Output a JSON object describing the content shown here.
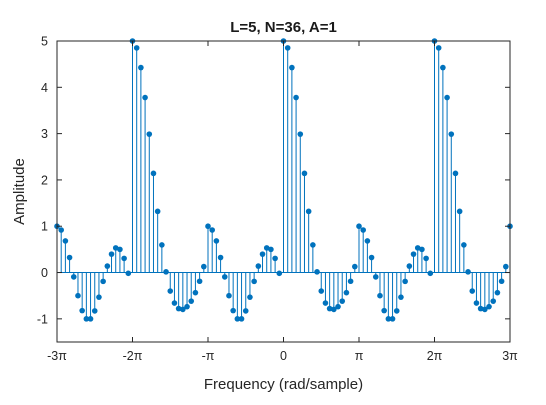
{
  "chart_data": {
    "type": "stem",
    "title": "L=5, N=36, A=1",
    "xlabel": "Frequency (rad/sample)",
    "ylabel": "Amplitude",
    "xlim_over_pi": [
      -3,
      3
    ],
    "ylim": [
      -1.5,
      5
    ],
    "x_ticks": [
      {
        "value_over_pi": -3,
        "label": "-3π"
      },
      {
        "value_over_pi": -2,
        "label": "-2π"
      },
      {
        "value_over_pi": -1,
        "label": "-π"
      },
      {
        "value_over_pi": 0,
        "label": "0"
      },
      {
        "value_over_pi": 1,
        "label": "π"
      },
      {
        "value_over_pi": 2,
        "label": "2π"
      },
      {
        "value_over_pi": 3,
        "label": "3π"
      }
    ],
    "y_ticks": [
      {
        "value": -1,
        "label": "-1"
      },
      {
        "value": 0,
        "label": "0"
      },
      {
        "value": 1,
        "label": "1"
      },
      {
        "value": 2,
        "label": "2"
      },
      {
        "value": 3,
        "label": "3"
      },
      {
        "value": 4,
        "label": "4"
      },
      {
        "value": 5,
        "label": "5"
      }
    ],
    "grid": false,
    "stem_color": "#0072bd",
    "x_over_pi": [
      -3.0,
      -2.9444,
      -2.8889,
      -2.8333,
      -2.7778,
      -2.7222,
      -2.6667,
      -2.6111,
      -2.5556,
      -2.5,
      -2.4444,
      -2.3889,
      -2.3333,
      -2.2778,
      -2.2222,
      -2.1667,
      -2.1111,
      -2.0556,
      -2.0,
      -1.9444,
      -1.8889,
      -1.8333,
      -1.7778,
      -1.7222,
      -1.6667,
      -1.6111,
      -1.5556,
      -1.5,
      -1.4444,
      -1.3889,
      -1.3333,
      -1.2778,
      -1.2222,
      -1.1667,
      -1.1111,
      -1.0556,
      -1.0,
      -0.9444,
      -0.8889,
      -0.8333,
      -0.7778,
      -0.7222,
      -0.6667,
      -0.6111,
      -0.5556,
      -0.5,
      -0.4444,
      -0.3889,
      -0.3333,
      -0.2778,
      -0.2222,
      -0.1667,
      -0.1111,
      -0.0556,
      0.0,
      0.0556,
      0.1111,
      0.1667,
      0.2222,
      0.2778,
      0.3333,
      0.3889,
      0.4444,
      0.5,
      0.5556,
      0.6111,
      0.6667,
      0.7222,
      0.7778,
      0.8333,
      0.8889,
      0.9444,
      1.0,
      1.0556,
      1.1111,
      1.1667,
      1.2222,
      1.2778,
      1.3333,
      1.3889,
      1.4444,
      1.5,
      1.5556,
      1.6111,
      1.6667,
      1.7222,
      1.7778,
      1.8333,
      1.8889,
      1.9444,
      2.0,
      2.0556,
      2.1111,
      2.1667,
      2.2222,
      2.2778,
      2.3333,
      2.3889,
      2.4444,
      2.5,
      2.5556,
      2.6111,
      2.6667,
      2.7222,
      2.7778,
      2.8333,
      2.8889,
      2.9444,
      3.0
    ],
    "values": [
      1.0,
      0.9187,
      0.6827,
      0.3244,
      -0.0941,
      -0.5,
      -0.8223,
      -1.0,
      -1.0,
      -0.8284,
      -0.5321,
      -0.1907,
      0.1392,
      0.3968,
      0.5321,
      0.5,
      0.3052,
      -0.0169,
      5.0,
      4.8512,
      4.4256,
      3.7788,
      2.9884,
      2.1418,
      1.3215,
      0.5963,
      0.0149,
      -0.4,
      -0.6589,
      -0.7788,
      -0.7958,
      -0.7371,
      -0.6176,
      -0.4348,
      -0.1883,
      0.1282,
      1.0,
      0.9187,
      0.6827,
      0.3244,
      -0.0941,
      -0.5,
      -0.8223,
      -1.0,
      -1.0,
      -0.8284,
      -0.5321,
      -0.1907,
      0.1392,
      0.3968,
      0.5321,
      0.5,
      0.3052,
      -0.0169,
      5.0,
      4.8512,
      4.4256,
      3.7788,
      2.9884,
      2.1418,
      1.3215,
      0.5963,
      0.0149,
      -0.4,
      -0.6589,
      -0.7788,
      -0.7958,
      -0.7371,
      -0.6176,
      -0.4348,
      -0.1883,
      0.1282,
      1.0,
      0.9187,
      0.6827,
      0.3244,
      -0.0941,
      -0.5,
      -0.8223,
      -1.0,
      -1.0,
      -0.8284,
      -0.5321,
      -0.1907,
      0.1392,
      0.3968,
      0.5321,
      0.5,
      0.3052,
      -0.0169,
      5.0,
      4.8512,
      4.4256,
      3.7788,
      2.9884,
      2.1418,
      1.3215,
      0.5963,
      0.0149,
      -0.4,
      -0.6589,
      -0.7788,
      -0.7958,
      -0.7371,
      -0.6176,
      -0.4348,
      -0.1883,
      0.1282,
      1.0
    ]
  }
}
